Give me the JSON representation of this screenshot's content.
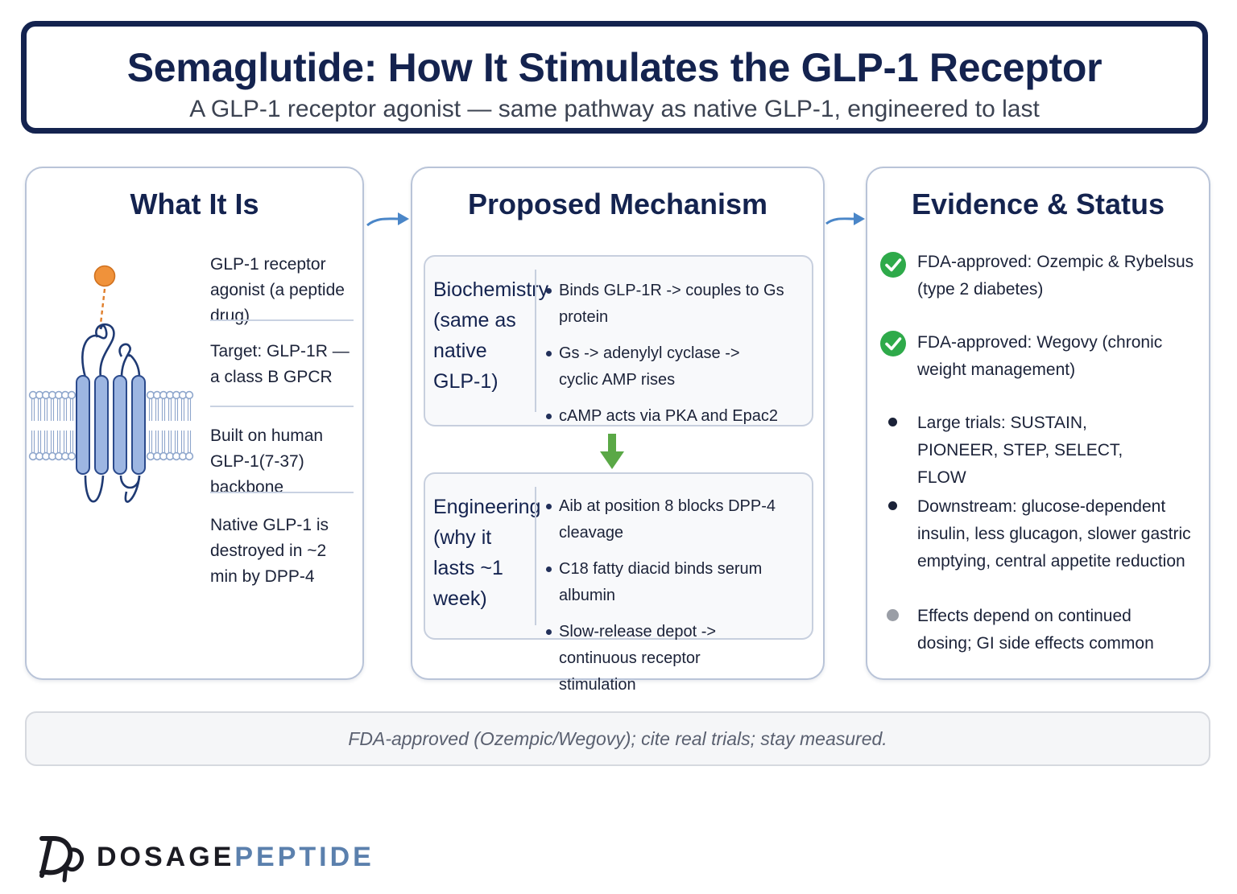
{
  "header": {
    "title": "Semaglutide: How It Stimulates the GLP-1 Receptor",
    "subtitle": "A GLP-1 receptor agonist — same pathway as native GLP-1, engineered to last"
  },
  "what_it_is": {
    "heading": "What It Is",
    "items": [
      "GLP-1 receptor agonist (a peptide drug)",
      "Target: GLP-1R — a class B GPCR",
      "Built on human GLP-1(7-37) backbone",
      "Native GLP-1 is destroyed in ~2 min by DPP-4"
    ]
  },
  "mechanism": {
    "heading": "Proposed Mechanism",
    "biochemistry": {
      "label": "Biochemistry (same as native GLP-1)",
      "bullets": [
        "Binds GLP-1R -> couples to Gs protein",
        "Gs -> adenylyl cyclase -> cyclic AMP rises",
        "cAMP acts via PKA and Epac2"
      ]
    },
    "engineering": {
      "label": "Engineering (why it lasts ~1 week)",
      "bullets": [
        "Aib at position 8 blocks DPP-4 cleavage",
        "C18 fatty diacid binds serum albumin",
        "Slow-release depot -> continuous receptor stimulation"
      ]
    }
  },
  "evidence": {
    "heading": "Evidence & Status",
    "items": [
      {
        "text": "FDA-approved: Ozempic & Rybelsus (type 2 diabetes)",
        "marker": "check-icon"
      },
      {
        "text": "FDA-approved: Wegovy (chronic weight management)",
        "marker": "check-icon"
      },
      {
        "text": "Large trials: SUSTAIN, PIONEER, STEP, SELECT, FLOW",
        "marker": "bullet-dark"
      },
      {
        "text": "Downstream: glucose-dependent insulin, less glucagon, slower gastric emptying, central appetite reduction",
        "marker": "bullet-dark"
      },
      {
        "text": "Effects depend on continued dosing; GI side effects common",
        "marker": "bullet-gray"
      }
    ]
  },
  "footer_note": "FDA-approved (Ozempic/Wegovy); cite real trials; stay measured.",
  "brand": {
    "part1": "DOSAGE",
    "part2": "PEPTIDE"
  },
  "colors": {
    "navy": "#14234f",
    "accent_blue": "#4a86c8",
    "check_green": "#2eaa4a",
    "arrow_green": "#5aa846",
    "ligand_orange": "#f0923a",
    "brand_blue": "#5b80ad"
  }
}
